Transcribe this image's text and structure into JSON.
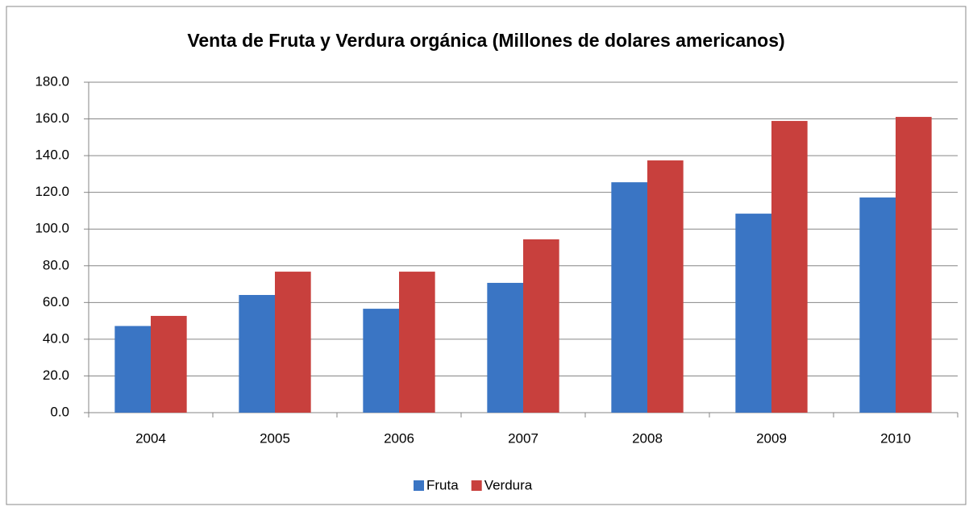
{
  "chart_data": {
    "type": "bar",
    "title": "Venta de Fruta y Verdura orgánica (Millones de dolares americanos)",
    "categories": [
      "2004",
      "2005",
      "2006",
      "2007",
      "2008",
      "2009",
      "2010"
    ],
    "series": [
      {
        "name": "Fruta",
        "color": "#3a75c4",
        "values": [
          47.2,
          64.1,
          56.6,
          70.7,
          125.5,
          108.4,
          117.2
        ]
      },
      {
        "name": "Verdura",
        "color": "#c8403d",
        "values": [
          52.7,
          76.8,
          76.8,
          94.4,
          137.4,
          158.9,
          161.1
        ]
      }
    ],
    "ylim": [
      0,
      180
    ],
    "yticks": [
      {
        "value": 0,
        "label": "0.0"
      },
      {
        "value": 20,
        "label": "20.0"
      },
      {
        "value": 40,
        "label": "40.0"
      },
      {
        "value": 60,
        "label": "60.0"
      },
      {
        "value": 80,
        "label": "80.0"
      },
      {
        "value": 100,
        "label": "100.0"
      },
      {
        "value": 120,
        "label": "120.0"
      },
      {
        "value": 140,
        "label": "140.0"
      },
      {
        "value": 160,
        "label": "160.0"
      },
      {
        "value": 180,
        "label": "180.0"
      }
    ],
    "grid": true,
    "legend": "bottom"
  }
}
